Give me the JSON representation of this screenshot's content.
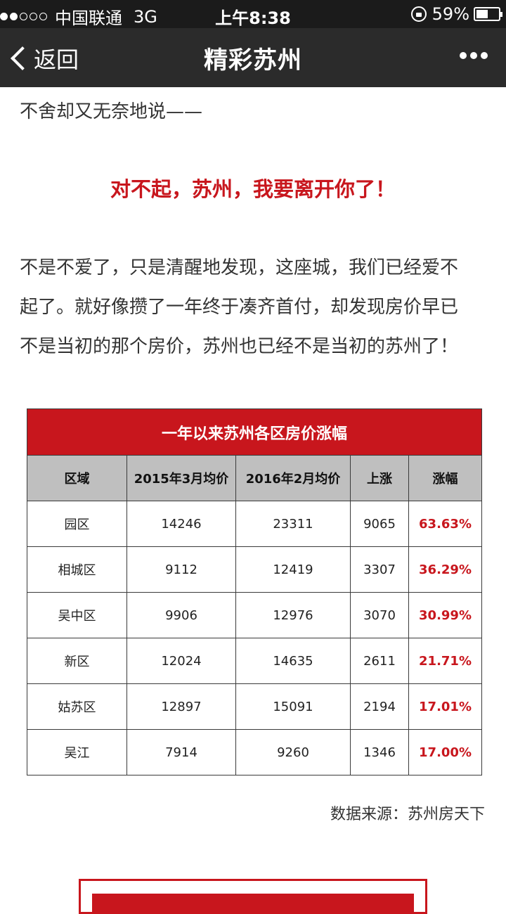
{
  "status_bar": {
    "carrier": "中国联通",
    "network": "3G",
    "time": "上午8:38",
    "battery": "59%",
    "battery_level": 0.59,
    "signal_filled": 2,
    "signal_total": 5
  },
  "nav": {
    "back_label": "返回",
    "title": "精彩苏州",
    "more_icon": "more-dots-icon"
  },
  "article": {
    "intro": "不舍却又无奈地说——",
    "headline": "对不起，苏州，我要离开你了！",
    "paragraph_lines": [
      "不是不爱了，只是清醒地发现，这座城，我们已经爱不",
      "起了。就好像攒了一年终于凑齐首付，却发现房价早已",
      "不是当初的那个房价，苏州也已经不是当初的苏州了！"
    ]
  },
  "table": {
    "title": "一年以来苏州各区房价涨幅",
    "headers": [
      "区域",
      "2015年3月均价",
      "2016年2月均价",
      "上涨",
      "涨幅"
    ],
    "rows": [
      [
        "园区",
        "14246",
        "23311",
        "9065",
        "63.63%"
      ],
      [
        "相城区",
        "9112",
        "12419",
        "3307",
        "36.29%"
      ],
      [
        "吴中区",
        "9906",
        "12976",
        "3070",
        "30.99%"
      ],
      [
        "新区",
        "12024",
        "14635",
        "2611",
        "21.71%"
      ],
      [
        "姑苏区",
        "12897",
        "15091",
        "2194",
        "17.01%"
      ],
      [
        "吴江",
        "7914",
        "9260",
        "1346",
        "17.00%"
      ]
    ]
  },
  "source": "数据来源：苏州房天下",
  "colors": {
    "accent": "#c8161d",
    "nav_bg": "#2b2b2b",
    "status_bg": "#1b1b1b",
    "table_header_bg": "#bfbfbf"
  }
}
